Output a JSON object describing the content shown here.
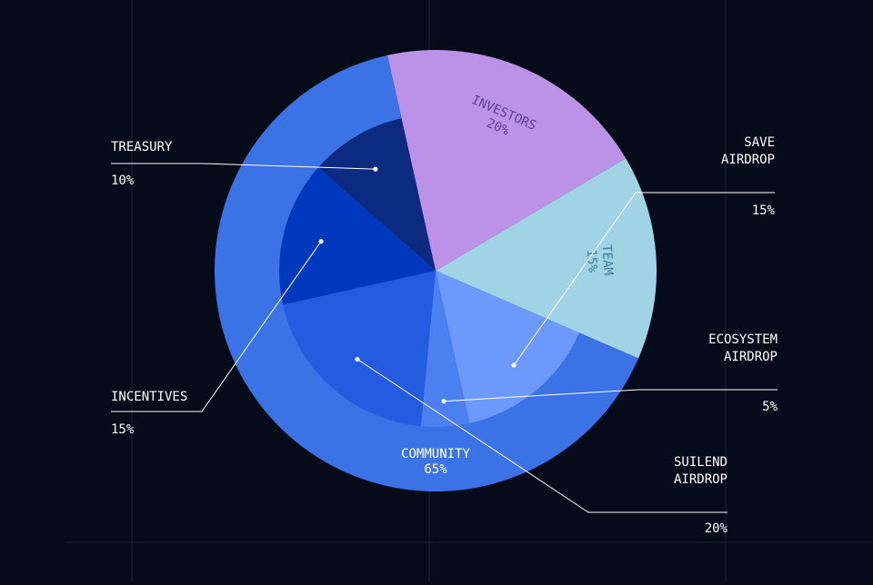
{
  "chart_data": {
    "type": "pie",
    "title": "",
    "colors": {
      "background": "#050b19",
      "grid": "#1a2233",
      "community_ring": "#3b73e6",
      "leader": "#ffffff"
    },
    "outer": [
      {
        "label": "INVESTORS",
        "value": 20,
        "value_label": "20%",
        "color": "#bc92e6",
        "text_color": "#5f3e8e"
      },
      {
        "label": "TEAM",
        "value": 15,
        "value_label": "15%",
        "color": "#a0d4e4",
        "text_color": "#3e7f94"
      },
      {
        "label": "COMMUNITY",
        "value": 65,
        "value_label": "65%",
        "color": "#3b73e6",
        "text_color": "#ffffff"
      }
    ],
    "inner": [
      {
        "label": "SAVE AIRDROP",
        "lines": [
          "SAVE",
          "AIRDROP"
        ],
        "value": 15,
        "value_label": "15%",
        "color": "#6e99fc"
      },
      {
        "label": "ECOSYSTEM AIRDROP",
        "lines": [
          "ECOSYSTEM",
          "AIRDROP"
        ],
        "value": 5,
        "value_label": "5%",
        "color": "#4c7ff0"
      },
      {
        "label": "SUILEND AIRDROP",
        "lines": [
          "SUILEND",
          "AIRDROP"
        ],
        "value": 20,
        "value_label": "20%",
        "color": "#255bdf"
      },
      {
        "label": "INCENTIVES",
        "lines": [
          "INCENTIVES"
        ],
        "value": 15,
        "value_label": "15%",
        "color": "#0039bd"
      },
      {
        "label": "TREASURY",
        "lines": [
          "TREASURY"
        ],
        "value": 10,
        "value_label": "10%",
        "color": "#0b2a80"
      }
    ]
  }
}
